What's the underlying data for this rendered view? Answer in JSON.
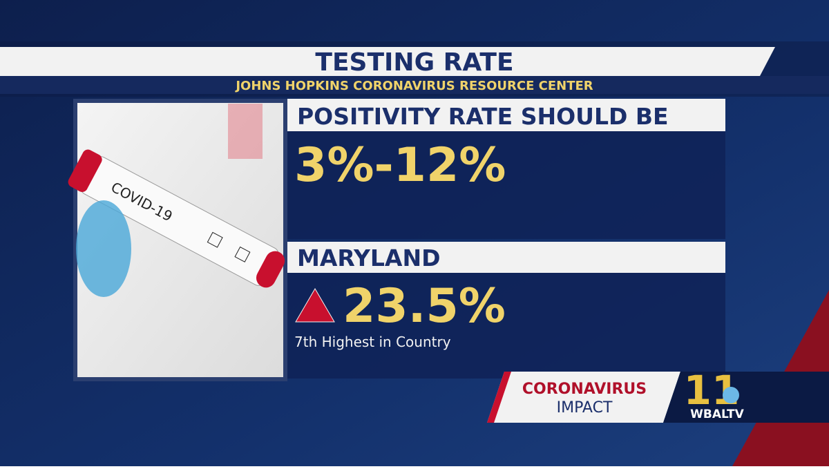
{
  "header": {
    "title": "TESTING RATE",
    "source": "JOHNS HOPKINS CORONAVIRUS RESOURCE CENTER"
  },
  "image": {
    "tube_label": "COVID-19"
  },
  "panels": [
    {
      "heading": "POSITIVITY RATE SHOULD BE",
      "value": "3%-12%"
    },
    {
      "heading": "MARYLAND",
      "value": "23.5%",
      "note": "7th Highest in Country"
    }
  ],
  "footer": {
    "show_line1": "CORONAVIRUS",
    "show_line2": "IMPACT",
    "logo_number": "11",
    "logo_text": "WBALTV"
  }
}
